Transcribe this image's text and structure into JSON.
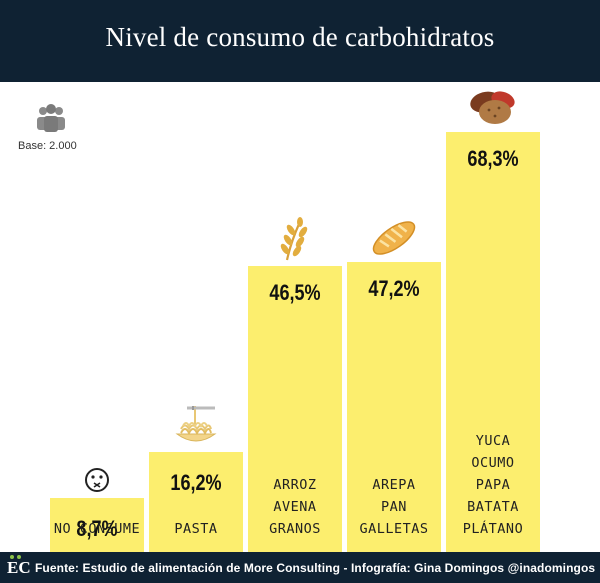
{
  "header": {
    "title": "Nivel de consumo de carbohidratos"
  },
  "base": {
    "label": "Base: 2.000",
    "icon": "people-icon"
  },
  "chart_data": {
    "type": "bar",
    "title": "Nivel de consumo de carbohidratos",
    "ylim": [
      0,
      70
    ],
    "categories": [
      [
        "NO CONSUME"
      ],
      [
        "PASTA"
      ],
      [
        "ARROZ",
        "AVENA",
        "GRANOS"
      ],
      [
        "AREPA",
        "PAN",
        "GALLETAS"
      ],
      [
        "YUCA",
        "OCUMO",
        "PAPA",
        "BATATA",
        "PLÁTANO"
      ]
    ],
    "values": [
      8.7,
      16.2,
      46.5,
      47.2,
      68.3
    ],
    "value_labels": [
      "8,7%",
      "16,2%",
      "46,5%",
      "47,2%",
      "68,3%"
    ],
    "icons": [
      "no-consume-face-icon",
      "pasta-icon",
      "grain-stalk-icon",
      "bread-icon",
      "root-vegetables-icon"
    ],
    "bar_color": "#fcee6e"
  },
  "footer": {
    "logo": "EC",
    "text": "Fuente: Estudio de alimentación  de More Consulting - Infografía: Gina Domingos @inadomingos"
  },
  "colors": {
    "header_bg": "#0f2233",
    "bar": "#fcee6e",
    "logo_accent": "#8bc34a"
  }
}
